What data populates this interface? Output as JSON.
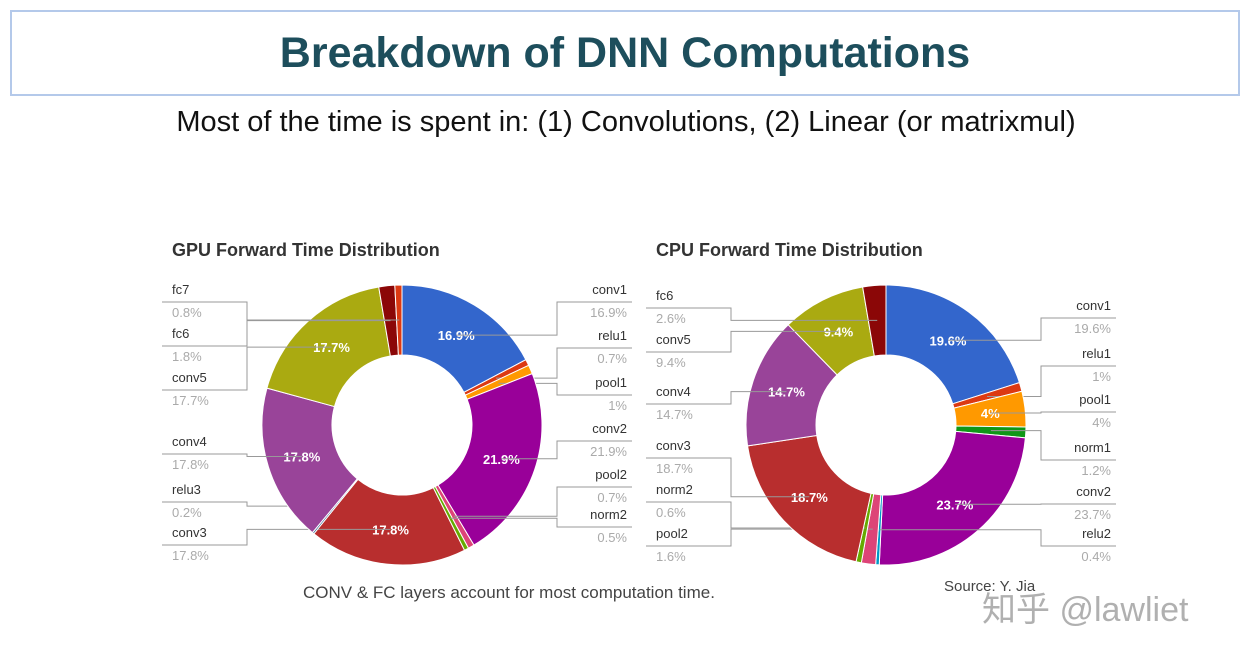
{
  "title": "Breakdown of DNN Computations",
  "subtitle": "Most of the time is spent in: (1) Convolutions, (2) Linear (or matrixmul)",
  "caption": "CONV & FC layers account for most computation time.",
  "source": "Source: Y. Jia",
  "watermark": "知乎 @lawliet",
  "chart_data": [
    {
      "type": "pie",
      "donut": true,
      "title": "GPU Forward Time Distribution",
      "categories": [
        "conv1",
        "relu1",
        "pool1",
        "conv2",
        "pool2",
        "norm2",
        "conv3",
        "relu3",
        "conv4",
        "conv5",
        "fc6",
        "fc7"
      ],
      "values": [
        16.9,
        0.7,
        1,
        21.9,
        0.7,
        0.5,
        17.8,
        0.2,
        17.8,
        17.7,
        1.8,
        0.8
      ],
      "labels": [
        "16.9%",
        "0.7%",
        "1%",
        "21.9%",
        "0.7%",
        "0.5%",
        "17.8%",
        "0.2%",
        "17.8%",
        "17.7%",
        "1.8%",
        "0.8%"
      ],
      "inner_labels": {
        "conv1": "16.9%",
        "conv2": "21.9%",
        "conv3": "17.8%",
        "conv4": "17.8%",
        "conv5": "17.7%"
      },
      "colors": [
        "#3366cc",
        "#dc3912",
        "#ff9900",
        "#990099",
        "#dd4477",
        "#66aa00",
        "#b82e2e",
        "#316395",
        "#994499",
        "#aaaa11",
        "#8b0707",
        "#dc3912"
      ],
      "legend": "callouts-both-sides"
    },
    {
      "type": "pie",
      "donut": true,
      "title": "CPU Forward Time Distribution",
      "categories": [
        "conv1",
        "relu1",
        "pool1",
        "norm1",
        "conv2",
        "relu2",
        "pool2",
        "norm2",
        "conv3",
        "conv4",
        "conv5",
        "fc6"
      ],
      "values": [
        19.6,
        1,
        4,
        1.2,
        23.7,
        0.4,
        1.6,
        0.6,
        18.7,
        14.7,
        9.4,
        2.6
      ],
      "labels": [
        "19.6%",
        "1%",
        "4%",
        "1.2%",
        "23.7%",
        "0.4%",
        "1.6%",
        "0.6%",
        "18.7%",
        "14.7%",
        "9.4%",
        "2.6%"
      ],
      "inner_labels": {
        "conv1": "19.6%",
        "pool1": "4%",
        "conv2": "23.7%",
        "conv3": "18.7%",
        "conv4": "14.7%",
        "conv5": "9.4%"
      },
      "colors": [
        "#3366cc",
        "#dc3912",
        "#ff9900",
        "#109618",
        "#990099",
        "#0099c6",
        "#dd4477",
        "#66aa00",
        "#b82e2e",
        "#994499",
        "#aaaa11",
        "#8b0707"
      ],
      "legend": "callouts-both-sides"
    }
  ]
}
